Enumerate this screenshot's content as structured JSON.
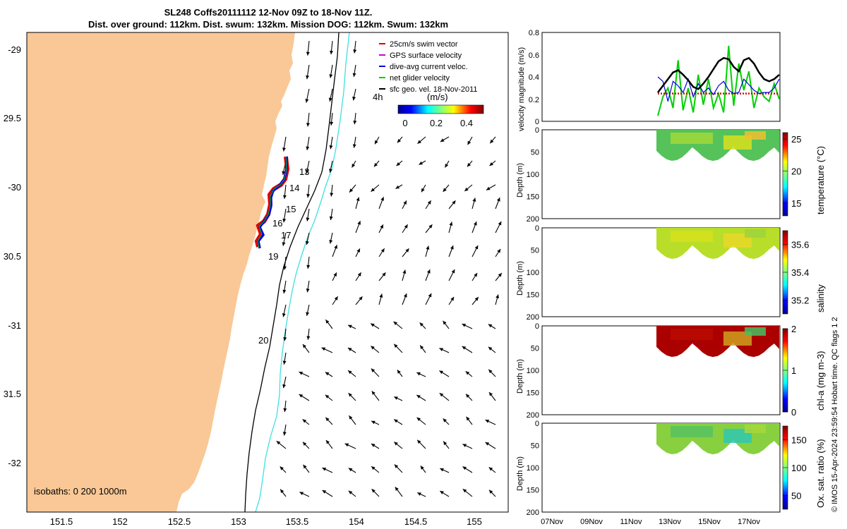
{
  "header": {
    "title_line1": "SL248 Coffs20111112 12-Nov 09Z to 18-Nov 11Z.",
    "title_line2": "Dist. over ground: 112km. Dist. swum: 132km. Mission DOG: 112km. Swum: 132km"
  },
  "map": {
    "lat_ticks": [
      "-29",
      "29.5",
      "-30",
      "30.5",
      "-31",
      "31.5",
      "-32"
    ],
    "lon_ticks": [
      "151.5",
      "152",
      "152.5",
      "153",
      "153.5",
      "154",
      "154.5",
      "155"
    ],
    "legend": [
      {
        "label": "25cm/s swim vector",
        "color": "#e00000"
      },
      {
        "label": "GPS surface velocity",
        "color": "#d000d0"
      },
      {
        "label": "dive-avg current veloc.",
        "color": "#0000e0"
      },
      {
        "label": "net glider velocity",
        "color": "#00d000"
      },
      {
        "label": "sfc geo. vel. 18-Nov-2011",
        "color": "#000000"
      }
    ],
    "arrow_tag": "4h",
    "colorbar_unit": "(m/s)",
    "colorbar_ticks": [
      "0",
      "0.2",
      "0.4"
    ],
    "day_labels": [
      "13",
      "14",
      "15",
      "16",
      "17",
      "19",
      "20"
    ],
    "isobath_text": "isobaths: 0   200  1000m",
    "colors": {
      "land": "#f9c896",
      "isobath_200": "#000000",
      "isobath_1000": "#40e0e0"
    }
  },
  "chart_data": [
    {
      "type": "line",
      "name": "velocity",
      "ylabel": "velocity magnitude (m/s)",
      "ylim": [
        0,
        0.8
      ],
      "yticks": [
        "0",
        "0.2",
        "0.4",
        "0.6",
        "0.8"
      ],
      "x_range": [
        "12-Nov",
        "18-Nov"
      ],
      "series_colors": [
        "#000000",
        "#0000e0",
        "#00d000",
        "#e00000"
      ],
      "series": [
        {
          "values": [
            0.26,
            0.32,
            0.38,
            0.44,
            0.46,
            0.42,
            0.37,
            0.31,
            0.29,
            0.34,
            0.4,
            0.47,
            0.54,
            0.57,
            0.56,
            0.49,
            0.45,
            0.55,
            0.57,
            0.52,
            0.44,
            0.38,
            0.36,
            0.38,
            0.42
          ]
        },
        {
          "values": [
            0.4,
            0.36,
            0.18,
            0.36,
            0.32,
            0.26,
            0.38,
            0.22,
            0.34,
            0.26,
            0.3,
            0.24,
            0.32,
            0.36,
            0.28,
            0.25,
            0.26,
            0.38,
            0.33,
            0.28,
            0.25,
            0.26,
            0.26,
            0.3,
            0.38
          ]
        },
        {
          "values": [
            0.05,
            0.22,
            0.3,
            0.12,
            0.55,
            0.1,
            0.3,
            0.08,
            0.42,
            0.15,
            0.38,
            0.12,
            0.25,
            0.08,
            0.68,
            0.14,
            0.52,
            0.28,
            0.45,
            0.12,
            0.3,
            0.22,
            0.18,
            0.34,
            0.2
          ]
        },
        {
          "values": [
            0.25,
            0.25,
            0.25,
            0.25,
            0.25,
            0.25,
            0.25,
            0.25,
            0.25,
            0.25,
            0.25,
            0.25,
            0.25,
            0.25,
            0.25,
            0.25,
            0.25,
            0.25,
            0.25,
            0.25,
            0.25,
            0.25,
            0.25,
            0.25,
            0.25
          ]
        }
      ]
    },
    {
      "type": "heatmap",
      "name": "temperature",
      "ylabel": "Depth (m)",
      "yticks": [
        "0",
        "50",
        "100",
        "150",
        "200"
      ],
      "colorbar_label": "temperature (°C)",
      "colorbar_ticks": [
        "25",
        "20",
        "15"
      ],
      "clim": [
        13,
        26
      ],
      "colors": [
        "#56c25a",
        "#a2d83a",
        "#d8e01e",
        "#f0c030"
      ]
    },
    {
      "type": "heatmap",
      "name": "salinity",
      "ylabel": "Depth (m)",
      "yticks": [
        "0",
        "50",
        "100",
        "150",
        "200"
      ],
      "colorbar_label": "salinity",
      "colorbar_ticks": [
        "35.6",
        "35.4",
        "35.2"
      ],
      "clim": [
        35.1,
        35.7
      ],
      "colors": [
        "#b8de2a",
        "#d6e01c",
        "#e6d828",
        "#9cd43c"
      ]
    },
    {
      "type": "heatmap",
      "name": "chl-a",
      "ylabel": "Depth (m)",
      "yticks": [
        "0",
        "50",
        "100",
        "150",
        "200"
      ],
      "colorbar_label": "chl-a (mg m-3)",
      "colorbar_ticks": [
        "2",
        "1",
        "0"
      ],
      "clim": [
        0,
        2
      ],
      "colors": [
        "#aa0000",
        "#bb0a00",
        "#d0a020",
        "#48c060"
      ]
    },
    {
      "type": "heatmap",
      "name": "oxygen",
      "ylabel": "Depth (m)",
      "yticks": [
        "0",
        "50",
        "100",
        "150",
        "200"
      ],
      "colorbar_label": "Ox. sat. ratio (%)",
      "colorbar_ticks": [
        "150",
        "100",
        "50"
      ],
      "clim": [
        25,
        175
      ],
      "colors": [
        "#88d040",
        "#58c260",
        "#30c8b0",
        "#a8d838"
      ]
    }
  ],
  "time_axis": {
    "ticks": [
      "07Nov",
      "09Nov",
      "11Nov",
      "13Nov",
      "15Nov",
      "17Nov"
    ]
  },
  "side_note": "© IMOS 15-Apr-2024 23:59:54 Hobart time. QC flags 1  2"
}
